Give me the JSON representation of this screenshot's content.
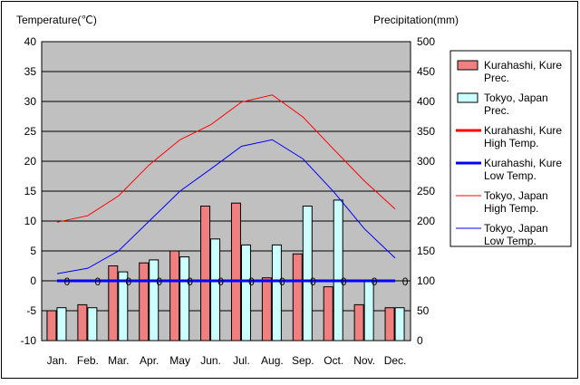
{
  "chart_data": {
    "type": "bar",
    "categories": [
      "Jan.",
      "Feb.",
      "Mar.",
      "Apr.",
      "May",
      "Jun.",
      "Jul.",
      "Aug.",
      "Sep.",
      "Oct.",
      "Nov.",
      "Dec."
    ],
    "left_axis": {
      "label": "Temperature(℃)",
      "ylim": [
        -10,
        40
      ],
      "ticks": [
        "-10",
        "-5",
        "0",
        "5",
        "10",
        "15",
        "20",
        "25",
        "30",
        "35",
        "40"
      ]
    },
    "right_axis": {
      "label": "Precipitation(mm)",
      "ylim": [
        0,
        500
      ],
      "ticks": [
        "0",
        "50",
        "100",
        "150",
        "200",
        "250",
        "300",
        "350",
        "400",
        "450",
        "500"
      ]
    },
    "grid": true,
    "legend_position": "right",
    "series": [
      {
        "name_lines": [
          "Kurahashi, Kure",
          "Prec."
        ],
        "kind": "bar",
        "axis": "right",
        "color": "#f08080",
        "values": [
          50,
          60,
          125,
          130,
          150,
          225,
          230,
          105,
          145,
          90,
          60,
          55
        ]
      },
      {
        "name_lines": [
          "Tokyo, Japan",
          "Prec."
        ],
        "kind": "bar",
        "axis": "right",
        "color": "#ccffff",
        "values": [
          55,
          55,
          115,
          135,
          140,
          170,
          160,
          160,
          225,
          235,
          100,
          55
        ]
      },
      {
        "name_lines": [
          "Kurahashi, Kure",
          "High Temp."
        ],
        "kind": "line",
        "axis": "left",
        "color": "#ff0000",
        "values": null
      },
      {
        "name_lines": [
          "Kurahashi, Kure",
          "Low Temp."
        ],
        "kind": "line",
        "axis": "left",
        "color": "#0000ff",
        "values": [
          0,
          0,
          0,
          0,
          0,
          0,
          0,
          0,
          0,
          0,
          0,
          0
        ],
        "point_labels": [
          "0",
          "0",
          "0",
          "0",
          "0",
          "0",
          "0",
          "0",
          "0",
          "0",
          "0",
          "0"
        ]
      },
      {
        "name_lines": [
          "Tokyo, Japan",
          "High Temp."
        ],
        "kind": "line",
        "axis": "left",
        "color": "#ff0000",
        "values": [
          9.8,
          10.9,
          14.2,
          19.4,
          23.6,
          26.1,
          29.9,
          31.1,
          27.4,
          22.0,
          16.7,
          12.0
        ]
      },
      {
        "name_lines": [
          "Tokyo, Japan",
          "Low Temp."
        ],
        "kind": "line",
        "axis": "left",
        "color": "#0000ff",
        "values": [
          1.2,
          2.1,
          5.0,
          10.0,
          15.0,
          18.7,
          22.5,
          23.6,
          20.4,
          14.9,
          8.7,
          3.8
        ]
      }
    ]
  }
}
